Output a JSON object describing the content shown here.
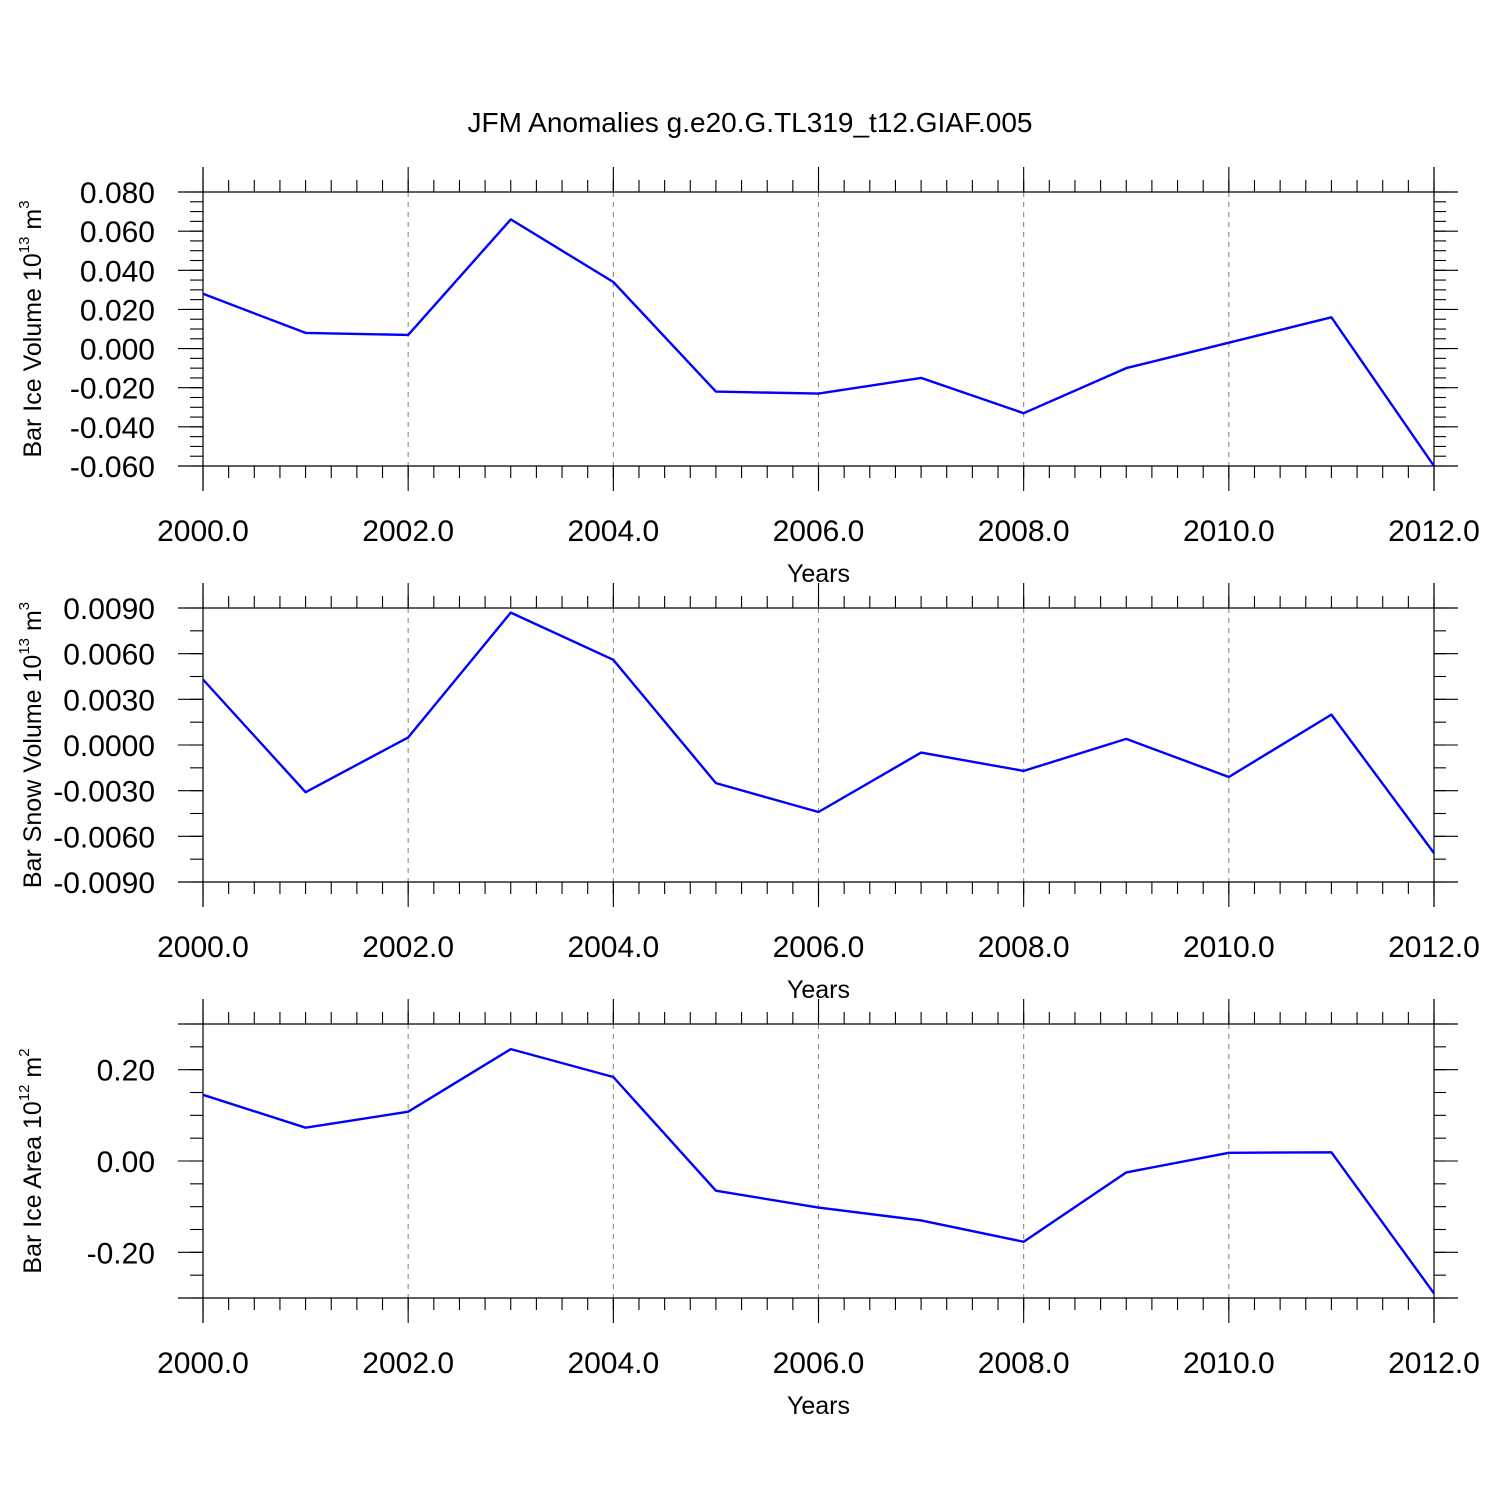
{
  "title": "JFM Anomalies g.e20.G.TL319_t12.GIAF.005",
  "colors": {
    "series": "#0000ff",
    "grid": "#8a8a8a",
    "axis": "#000000"
  },
  "chart_data": [
    {
      "type": "line",
      "ylabel": "Bar Ice Volume 10",
      "ylabel_exponent": "13",
      "ylabel_unit": "m",
      "ylabel_unit_exponent": "3",
      "xlabel": "Years",
      "xlim": [
        2000,
        2012
      ],
      "ylim": [
        -0.06,
        0.08
      ],
      "xticks": [
        2000,
        2002,
        2004,
        2006,
        2008,
        2010,
        2012
      ],
      "xtick_labels": [
        "2000.0",
        "2002.0",
        "2004.0",
        "2006.0",
        "2008.0",
        "2010.0",
        "2012.0"
      ],
      "yticks": [
        -0.06,
        -0.04,
        -0.02,
        0.0,
        0.02,
        0.04,
        0.06,
        0.08
      ],
      "ytick_labels": [
        "-0.060",
        "-0.040",
        "-0.020",
        "0.000",
        "0.020",
        "0.040",
        "0.060",
        "0.080"
      ],
      "grid": "vertical dashed at major x ticks",
      "x": [
        2000,
        2001,
        2002,
        2003,
        2004,
        2005,
        2006,
        2007,
        2008,
        2009,
        2010,
        2011,
        2012
      ],
      "y": [
        0.028,
        0.008,
        0.007,
        0.066,
        0.034,
        -0.022,
        -0.023,
        -0.015,
        -0.033,
        -0.01,
        0.003,
        0.016,
        -0.06
      ]
    },
    {
      "type": "line",
      "ylabel": "Bar Snow Volume 10",
      "ylabel_exponent": "13",
      "ylabel_unit": "m",
      "ylabel_unit_exponent": "3",
      "xlabel": "Years",
      "xlim": [
        2000,
        2012
      ],
      "ylim": [
        -0.009,
        0.009
      ],
      "xticks": [
        2000,
        2002,
        2004,
        2006,
        2008,
        2010,
        2012
      ],
      "xtick_labels": [
        "2000.0",
        "2002.0",
        "2004.0",
        "2006.0",
        "2008.0",
        "2010.0",
        "2012.0"
      ],
      "yticks": [
        -0.009,
        -0.006,
        -0.003,
        0.0,
        0.003,
        0.006,
        0.009
      ],
      "ytick_labels": [
        "-0.0090",
        "-0.0060",
        "-0.0030",
        "0.0000",
        "0.0030",
        "0.0060",
        "0.0090"
      ],
      "grid": "vertical dashed at major x ticks",
      "x": [
        2000,
        2001,
        2002,
        2003,
        2004,
        2005,
        2006,
        2007,
        2008,
        2009,
        2010,
        2011,
        2012
      ],
      "y": [
        0.0043,
        -0.0031,
        0.0005,
        0.0087,
        0.0056,
        -0.0025,
        -0.0044,
        -0.0005,
        -0.0017,
        0.0004,
        -0.0021,
        0.002,
        -0.0071
      ]
    },
    {
      "type": "line",
      "ylabel": "Bar Ice Area 10",
      "ylabel_exponent": "12",
      "ylabel_unit": "m",
      "ylabel_unit_exponent": "2",
      "xlabel": "Years",
      "xlim": [
        2000,
        2012
      ],
      "ylim": [
        -0.3,
        0.3
      ],
      "xticks": [
        2000,
        2002,
        2004,
        2006,
        2008,
        2010,
        2012
      ],
      "xtick_labels": [
        "2000.0",
        "2002.0",
        "2004.0",
        "2006.0",
        "2008.0",
        "2010.0",
        "2012.0"
      ],
      "yticks": [
        -0.2,
        0.0,
        0.2
      ],
      "ytick_labels": [
        "-0.20",
        "0.00",
        "0.20"
      ],
      "grid": "vertical dashed at major x ticks",
      "x": [
        2000,
        2001,
        2002,
        2003,
        2004,
        2005,
        2006,
        2007,
        2008,
        2009,
        2010,
        2011,
        2012
      ],
      "y": [
        0.145,
        0.073,
        0.108,
        0.245,
        0.184,
        -0.065,
        -0.102,
        -0.13,
        -0.177,
        -0.025,
        0.018,
        0.019,
        -0.29
      ]
    }
  ]
}
